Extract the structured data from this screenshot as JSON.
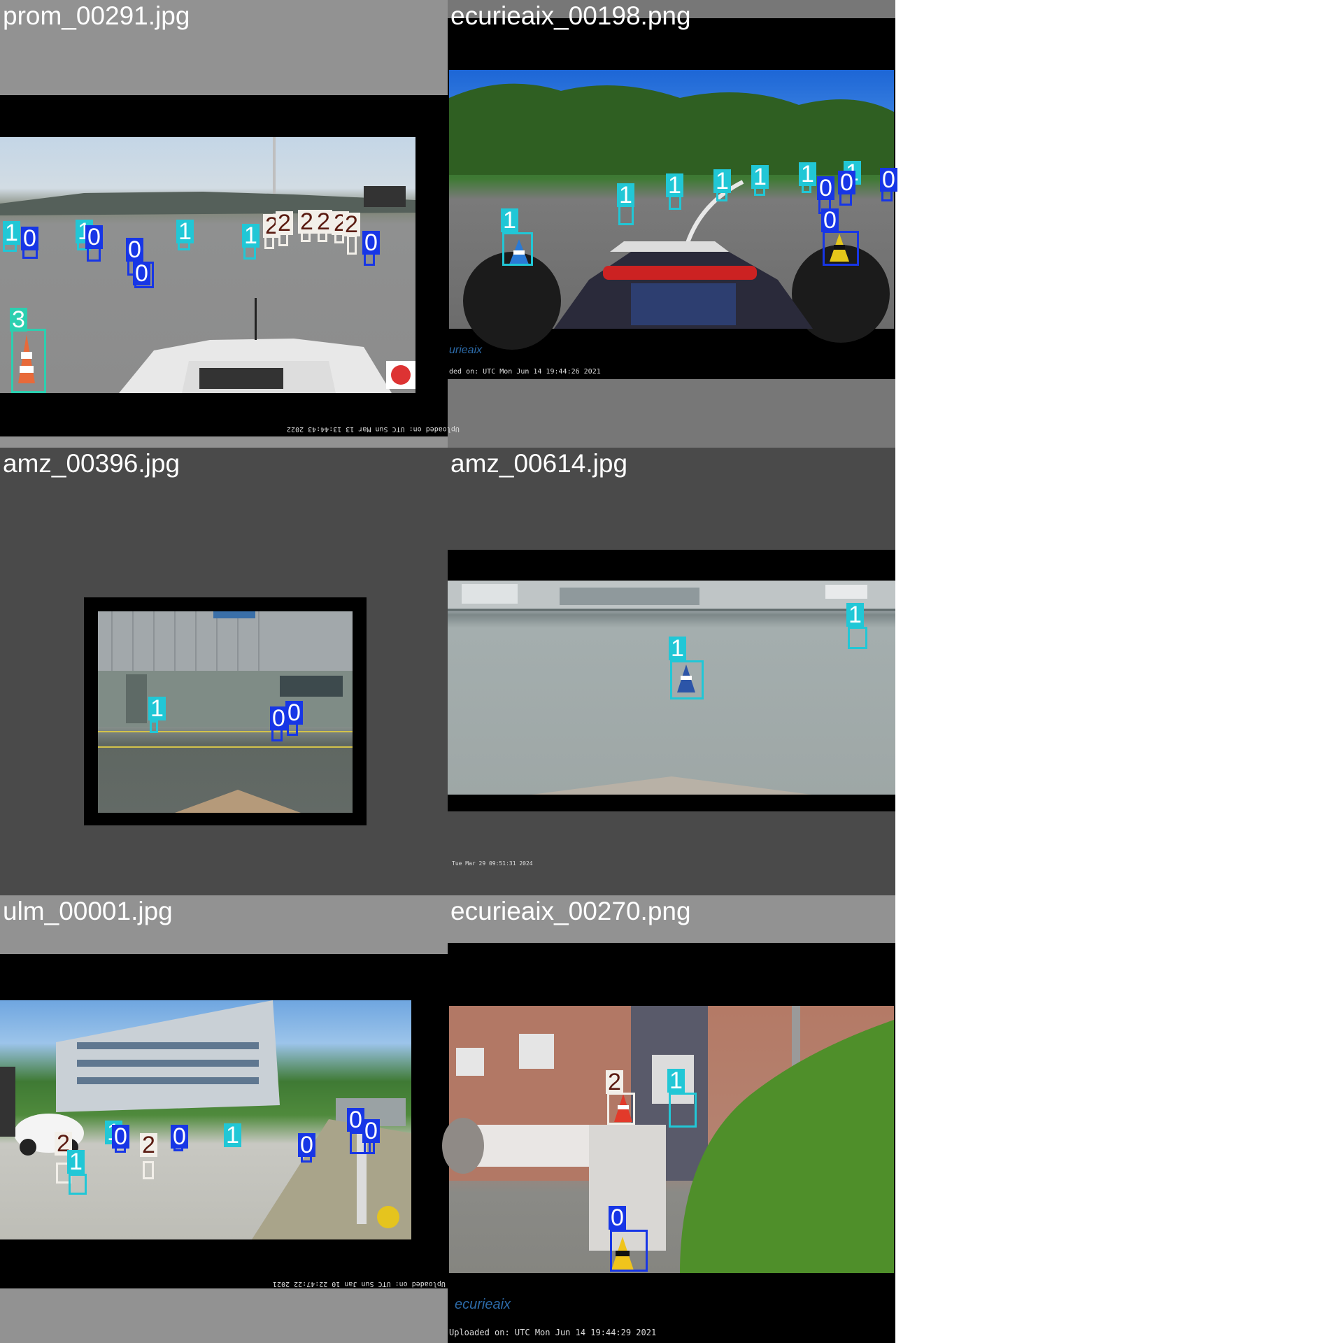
{
  "tiles": [
    {
      "filename": "prom_00291.jpg",
      "stamp": "Uploaded on: UTC Sun Mar 13 13:44:43 2022"
    },
    {
      "filename": "ecurieaix_00198.png",
      "stamp": "ded on: UTC Mon Jun 14 19:44:26 2021",
      "brand": "urieaix"
    },
    {
      "filename": "amz_00396.jpg"
    },
    {
      "filename": "amz_00614.jpg",
      "stamp": "Tue Mar 29 09:51:31 2024"
    },
    {
      "filename": "ulm_00001.jpg",
      "stamp": "Uploaded on: UTC Sun Jan 10 22:47:22 2021"
    },
    {
      "filename": "ecurieaix_00270.png",
      "stamp": "Uploaded on:  UTC  Mon Jun 14 19:44:29 2021",
      "brand": "ecurieaix"
    }
  ],
  "class_labels": [
    "0",
    "1",
    "2",
    "3"
  ],
  "colors": {
    "class0": "#1736e6",
    "class1": "#21c7d6",
    "class2": "#f2efe9",
    "class3": "#2ccfb0"
  }
}
